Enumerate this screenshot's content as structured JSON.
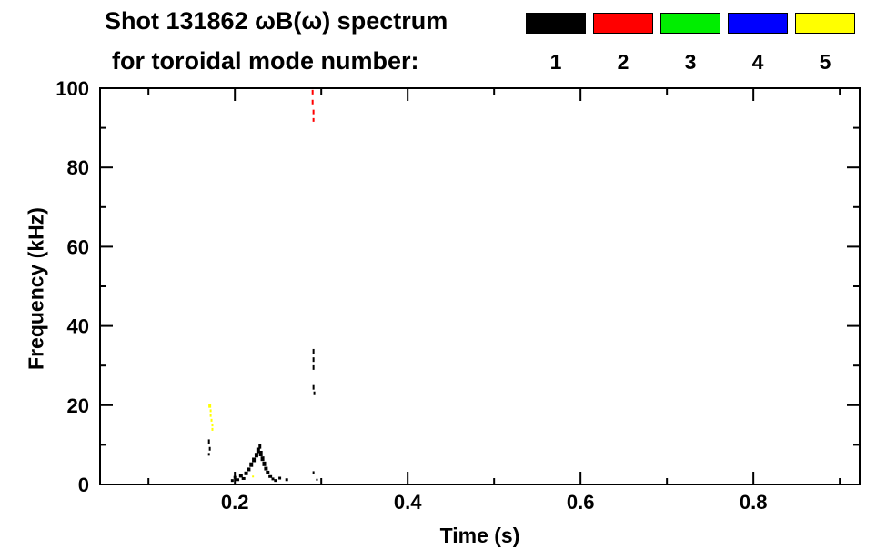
{
  "chart_data": {
    "type": "scatter",
    "title": "Shot 131862 ωB(ω) spectrum",
    "subtitle": "for toroidal mode number:",
    "xlabel": "Time (s)",
    "ylabel": "Frequency (kHz)",
    "xlim": [
      0.044,
      0.923
    ],
    "ylim": [
      0,
      100
    ],
    "axis_color": "#000000",
    "background_color": "#ffffff",
    "grid": false,
    "legend_position": "top-right",
    "xticks": [
      {
        "v": 0.2,
        "label": "0.2"
      },
      {
        "v": 0.4,
        "label": "0.4"
      },
      {
        "v": 0.6,
        "label": "0.6"
      },
      {
        "v": 0.8,
        "label": "0.8"
      }
    ],
    "yticks": [
      {
        "v": 0,
        "label": "0"
      },
      {
        "v": 20,
        "label": "20"
      },
      {
        "v": 40,
        "label": "40"
      },
      {
        "v": 60,
        "label": "60"
      },
      {
        "v": 80,
        "label": "80"
      },
      {
        "v": 100,
        "label": "100"
      }
    ],
    "xminor": [
      0.1,
      0.3,
      0.5,
      0.7,
      0.9
    ],
    "yminor": [
      10,
      30,
      50,
      70,
      90
    ],
    "legend": {
      "items": [
        {
          "label": "1",
          "color": "#000000"
        },
        {
          "label": "2",
          "color": "#ff0000"
        },
        {
          "label": "3",
          "color": "#00ee00"
        },
        {
          "label": "4",
          "color": "#0000ff"
        },
        {
          "label": "5",
          "color": "#ffff00"
        }
      ]
    },
    "series": [
      {
        "name": "mode-1",
        "color": "#000000",
        "points": [
          [
            0.17,
            10.8,
            2,
            5
          ],
          [
            0.171,
            9.0,
            2,
            4
          ],
          [
            0.17,
            7.6,
            2,
            3
          ],
          [
            0.197,
            1.0,
            3,
            3
          ],
          [
            0.2,
            1.8,
            3,
            3
          ],
          [
            0.203,
            1.2,
            4,
            3
          ],
          [
            0.207,
            2.2,
            4,
            4
          ],
          [
            0.21,
            1.5,
            4,
            3
          ],
          [
            0.213,
            2.8,
            4,
            4
          ],
          [
            0.216,
            3.8,
            4,
            4
          ],
          [
            0.219,
            5.0,
            4,
            5
          ],
          [
            0.222,
            6.2,
            4,
            5
          ],
          [
            0.225,
            7.4,
            4,
            5
          ],
          [
            0.227,
            8.6,
            4,
            6
          ],
          [
            0.229,
            9.6,
            3,
            5
          ],
          [
            0.23,
            7.8,
            4,
            6
          ],
          [
            0.232,
            6.5,
            4,
            5
          ],
          [
            0.234,
            5.2,
            4,
            5
          ],
          [
            0.236,
            4.0,
            4,
            4
          ],
          [
            0.238,
            3.0,
            4,
            4
          ],
          [
            0.241,
            2.0,
            4,
            3
          ],
          [
            0.244,
            1.4,
            3,
            3
          ],
          [
            0.247,
            1.0,
            3,
            3
          ],
          [
            0.252,
            1.6,
            3,
            3
          ],
          [
            0.26,
            1.2,
            3,
            3
          ],
          [
            0.291,
            33.5,
            2,
            6
          ],
          [
            0.291,
            31.5,
            2,
            5
          ],
          [
            0.291,
            29.5,
            2,
            5
          ],
          [
            0.291,
            24.5,
            2,
            5
          ],
          [
            0.292,
            23.0,
            2,
            4
          ],
          [
            0.291,
            3.0,
            2,
            3
          ],
          [
            0.295,
            1.2,
            2,
            2
          ]
        ]
      },
      {
        "name": "mode-2",
        "color": "#ff0000",
        "points": [
          [
            0.29,
            99.0,
            2,
            5
          ],
          [
            0.29,
            96.5,
            2,
            5
          ],
          [
            0.291,
            94.0,
            2,
            5
          ],
          [
            0.291,
            92.0,
            2,
            4
          ]
        ]
      },
      {
        "name": "mode-3",
        "color": "#00ee00",
        "points": []
      },
      {
        "name": "mode-4",
        "color": "#0000ff",
        "points": []
      },
      {
        "name": "mode-5",
        "color": "#ffff00",
        "points": [
          [
            0.171,
            19.8,
            3,
            4
          ],
          [
            0.172,
            18.6,
            2,
            3
          ],
          [
            0.172,
            17.4,
            2,
            3
          ],
          [
            0.173,
            16.2,
            2,
            3
          ],
          [
            0.174,
            15.0,
            2,
            3
          ],
          [
            0.174,
            13.9,
            2,
            3
          ],
          [
            0.221,
            2.0,
            2,
            2
          ]
        ]
      }
    ]
  }
}
